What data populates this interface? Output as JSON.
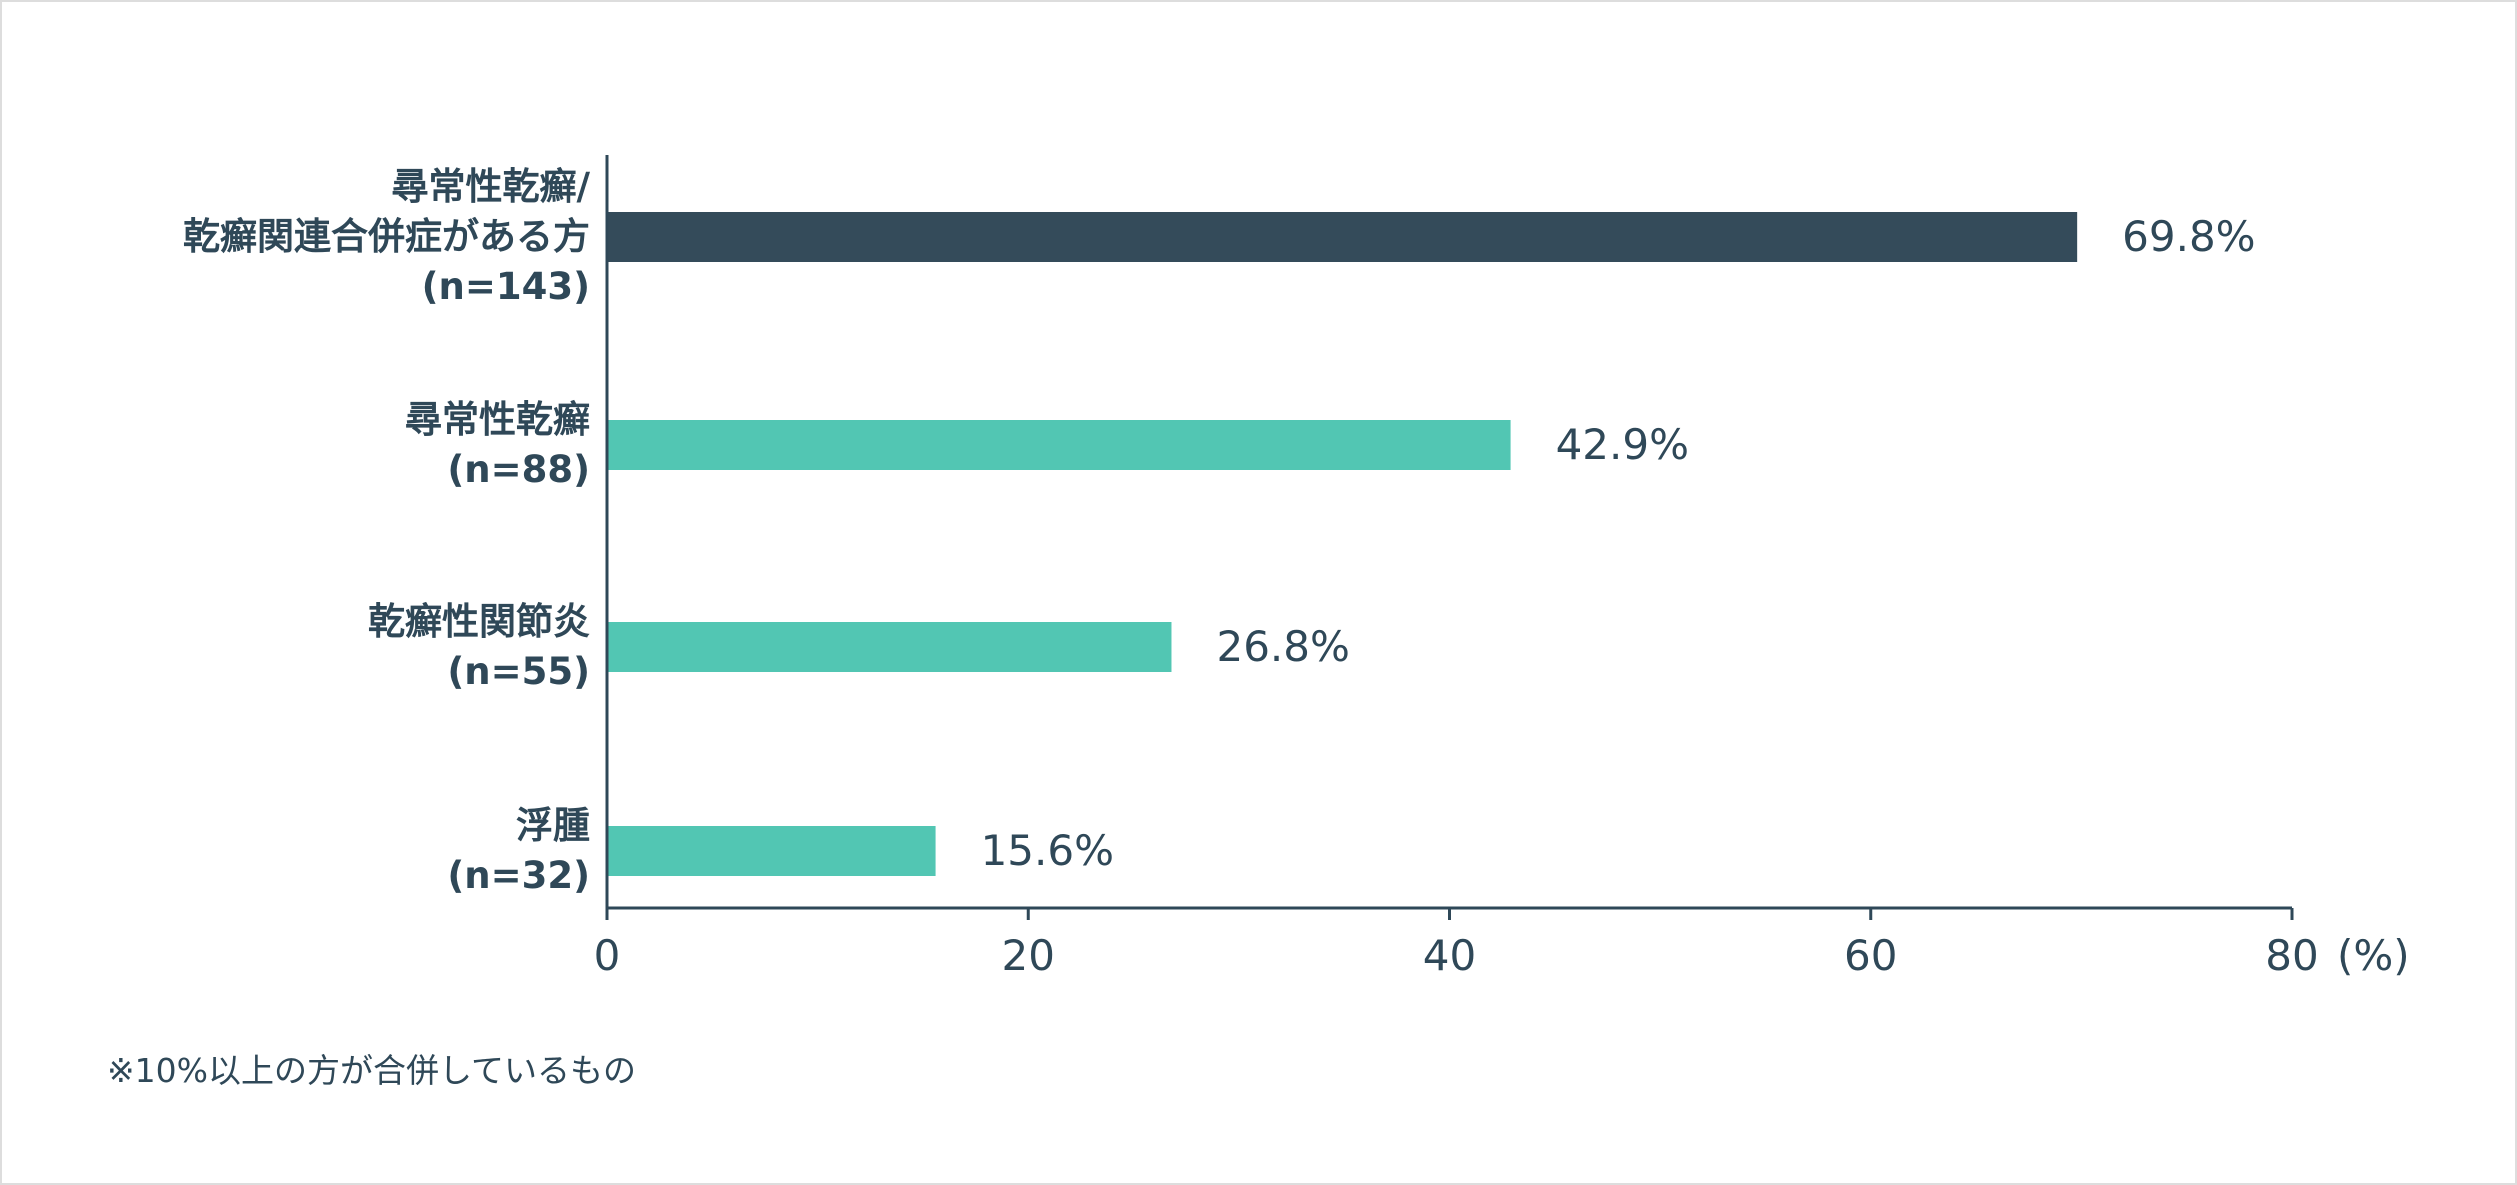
{
  "chart_data": {
    "type": "bar",
    "orientation": "horizontal",
    "categories": [
      [
        "尋常性乾癬/",
        "乾癬関連合併症がある方",
        "(n=143)"
      ],
      [
        "尋常性乾癬",
        "(n=88)"
      ],
      [
        "乾癬性関節炎",
        "(n=55)"
      ],
      [
        "浮腫",
        "(n=32)"
      ]
    ],
    "values": [
      69.8,
      42.9,
      26.8,
      15.6
    ],
    "value_labels": [
      "69.8%",
      "42.9%",
      "26.8%",
      "15.6%"
    ],
    "bar_colors": [
      "#344b5a",
      "#52c6b3",
      "#52c6b3",
      "#52c6b3"
    ],
    "xlim": [
      0,
      80
    ],
    "xticks": [
      0,
      20,
      40,
      60,
      80
    ],
    "xtick_labels": [
      "0",
      "20",
      "40",
      "60",
      "80"
    ],
    "xunit": "(%)",
    "grid": false,
    "legend": "none"
  },
  "footnote": "※10%以上の方が合併しているもの",
  "colors": {
    "text": "#2f4858",
    "axis": "#2f4858",
    "highlight_bar": "#344b5a",
    "bar": "#52c6b3",
    "border": "#dddddd"
  }
}
